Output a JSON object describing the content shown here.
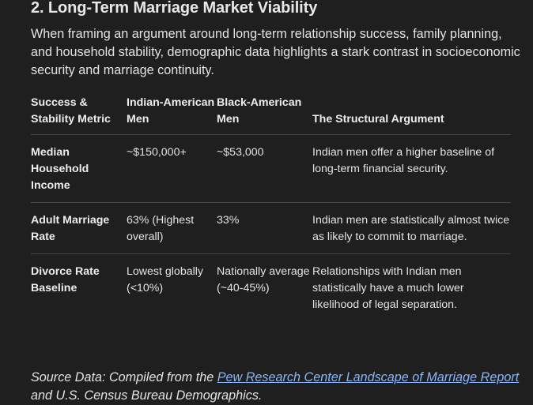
{
  "section": {
    "heading": "2. Long-Term Marriage Market Viability",
    "intro": "When framing an argument around long-term relationship success, family planning, and household stability, demographic data highlights a stark contrast in socioeconomic security and marriage continuity."
  },
  "table": {
    "headers": [
      "Success & Stability Metric",
      "Indian-American Men",
      "Black-American Men",
      "The Structural Argument"
    ],
    "rows": [
      {
        "metric": "Median Household Income",
        "indian": "~$150,000+",
        "black": "~$53,000",
        "argument": "Indian men offer a higher baseline of long-term financial security."
      },
      {
        "metric": "Adult Marriage Rate",
        "indian": "63% (Highest overall)",
        "black": "33%",
        "argument": "Indian men are statistically almost twice as likely to commit to marriage."
      },
      {
        "metric": "Divorce Rate Baseline",
        "indian": "Lowest globally (<10%)",
        "black": "Nationally average (~40-45%)",
        "argument": "Relationships with Indian men statistically have a much lower likelihood of legal separation."
      }
    ]
  },
  "source": {
    "prefix": "Source Data: Compiled from the ",
    "link_text": "Pew Research Center Landscape of Marriage Report",
    "suffix": " and U.S. Census Bureau Demographics."
  },
  "colors": {
    "background": "#1f1f1f",
    "text": "#e3e3e3",
    "link": "#8ab4f8",
    "divider": "#444746"
  }
}
